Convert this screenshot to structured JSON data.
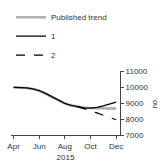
{
  "chart_data": {
    "type": "line",
    "ylabel": "no.",
    "xlabel": "2015",
    "series": [
      {
        "name": "Published trend",
        "color": "#b0b0b0",
        "line_style": "solid",
        "x": [
          0,
          0.5,
          1,
          1.5,
          2,
          2.5,
          3,
          3.5,
          4,
          4.5,
          5,
          5.5,
          6,
          6.5,
          7,
          7.5,
          8
        ],
        "values": [
          9980,
          9965,
          9940,
          9870,
          9760,
          9580,
          9360,
          9140,
          8960,
          8840,
          8760,
          8710,
          8690,
          8680,
          8670,
          8660,
          8650
        ]
      },
      {
        "name": "1",
        "color": "#000000",
        "line_style": "solid",
        "x": [
          0,
          0.5,
          1,
          1.5,
          2,
          2.5,
          3,
          3.5,
          4,
          4.5,
          5,
          5.5,
          6,
          6.5,
          7,
          7.5,
          8
        ],
        "values": [
          9980,
          9970,
          9950,
          9880,
          9780,
          9600,
          9380,
          9160,
          8980,
          8850,
          8760,
          8700,
          8680,
          8720,
          8820,
          8940,
          9050
        ]
      },
      {
        "name": "2",
        "color": "#000000",
        "line_style": "dashed",
        "x": [
          5,
          5.5,
          6,
          6.5,
          7,
          7.5,
          8
        ],
        "values": [
          8760,
          8650,
          8520,
          8380,
          8220,
          8080,
          7950
        ]
      }
    ],
    "xlim": [
      -0.2,
      8.3
    ],
    "xticks": [
      {
        "value": 0,
        "label": "Apr"
      },
      {
        "value": 2,
        "label": "Jun"
      },
      {
        "value": 4,
        "label": "Aug"
      },
      {
        "value": 6,
        "label": "Oct"
      },
      {
        "value": 8,
        "label": "Dec"
      }
    ],
    "ylim": [
      7000,
      11000
    ],
    "yticks": [
      7000,
      8000,
      9000,
      10000,
      11000
    ],
    "grid": false,
    "legend": "upper left"
  }
}
